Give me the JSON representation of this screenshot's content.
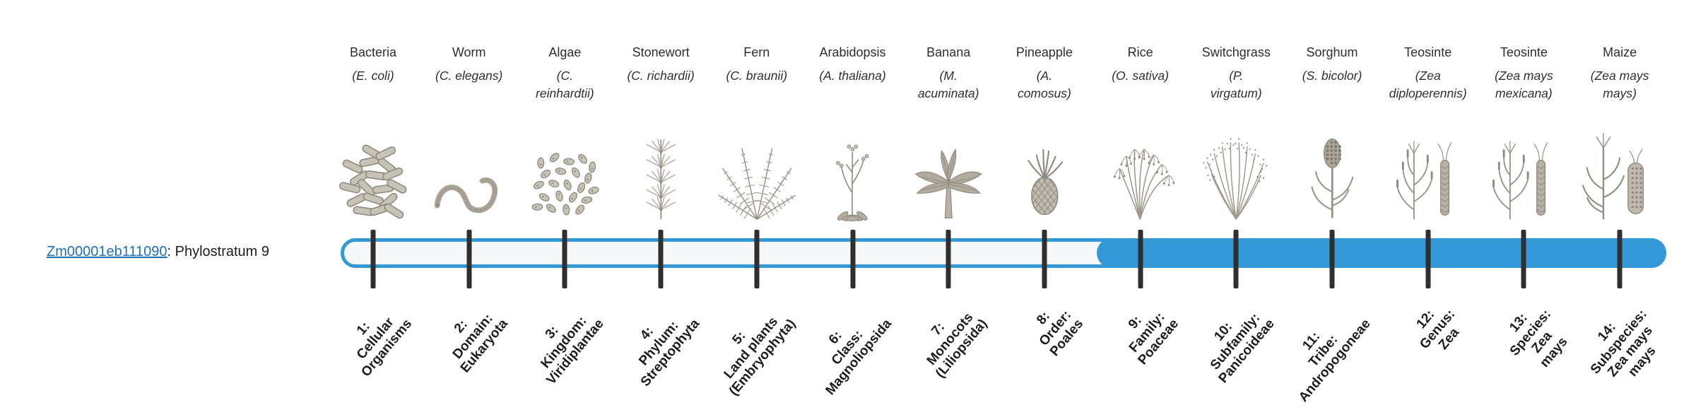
{
  "gene": {
    "id": "Zm00001eb111090",
    "label_suffix": ": Phylostratum 9"
  },
  "timeline": {
    "filled_from_stratum": 9,
    "total_strata": 14
  },
  "colors": {
    "bar_blue": "#3399d6",
    "bar_track": "#f5f7f8",
    "tick": "#2f2f2f",
    "link": "#1d70b8",
    "label_text": "#1c1c1c",
    "illustration_gray": "#a8a396"
  },
  "organisms": [
    {
      "common": "Bacteria",
      "sci_lines": [
        "(E. coli)"
      ],
      "icon": "bacteria-icon",
      "stratum_lines": [
        "1:",
        "Cellular",
        "Organisms"
      ]
    },
    {
      "common": "Worm",
      "sci_lines": [
        "(C. elegans)"
      ],
      "icon": "worm-icon",
      "stratum_lines": [
        "2:",
        "Domain:",
        "Eukaryota"
      ]
    },
    {
      "common": "Algae",
      "sci_lines": [
        "(C.",
        "reinhardtii)"
      ],
      "icon": "algae-icon",
      "stratum_lines": [
        "3:",
        "Kingdom:",
        "Viridiplantae"
      ]
    },
    {
      "common": "Stonewort",
      "sci_lines": [
        "(C. richardii)"
      ],
      "icon": "stonewort-icon",
      "stratum_lines": [
        "4:",
        "Phylum:",
        "Streptophyta"
      ]
    },
    {
      "common": "Fern",
      "sci_lines": [
        "(C. braunii)"
      ],
      "icon": "fern-icon",
      "stratum_lines": [
        "5:",
        "Land plants",
        "(Embryophyta)"
      ]
    },
    {
      "common": "Arabidopsis",
      "sci_lines": [
        "(A. thaliana)"
      ],
      "icon": "arabidopsis-icon",
      "stratum_lines": [
        "6:",
        "Class:",
        "Magnoliopsida"
      ]
    },
    {
      "common": "Banana",
      "sci_lines": [
        "(M.",
        "acuminata)"
      ],
      "icon": "banana-icon",
      "stratum_lines": [
        "7:",
        "Monocots",
        "(Liliopsida)"
      ]
    },
    {
      "common": "Pineapple",
      "sci_lines": [
        "(A.",
        "comosus)"
      ],
      "icon": "pineapple-icon",
      "stratum_lines": [
        "8:",
        "Order:",
        "Poales"
      ]
    },
    {
      "common": "Rice",
      "sci_lines": [
        "(O. sativa)"
      ],
      "icon": "rice-icon",
      "stratum_lines": [
        "9:",
        "Family:",
        "Poaceae"
      ]
    },
    {
      "common": "Switchgrass",
      "sci_lines": [
        "(P.",
        "virgatum)"
      ],
      "icon": "switchgrass-icon",
      "stratum_lines": [
        "10:",
        "Subfamily:",
        "Panicoideae"
      ]
    },
    {
      "common": "Sorghum",
      "sci_lines": [
        "(S. bicolor)"
      ],
      "icon": "sorghum-icon",
      "stratum_lines": [
        "11:",
        "Tribe:",
        "Andropogoneae"
      ]
    },
    {
      "common": "Teosinte",
      "sci_lines": [
        "(Zea",
        "diploperennis)"
      ],
      "icon": "teosinte-icon",
      "stratum_lines": [
        "12:",
        "Genus:",
        "Zea"
      ]
    },
    {
      "common": "Teosinte",
      "sci_lines": [
        "(Zea mays",
        "mexicana)"
      ],
      "icon": "teosinte-icon",
      "stratum_lines": [
        "13:",
        "Species:",
        "Zea",
        "mays"
      ]
    },
    {
      "common": "Maize",
      "sci_lines": [
        "(Zea mays",
        "mays)"
      ],
      "icon": "maize-icon",
      "stratum_lines": [
        "14:",
        "Subspecies:",
        "Zea mays",
        "mays"
      ]
    }
  ]
}
